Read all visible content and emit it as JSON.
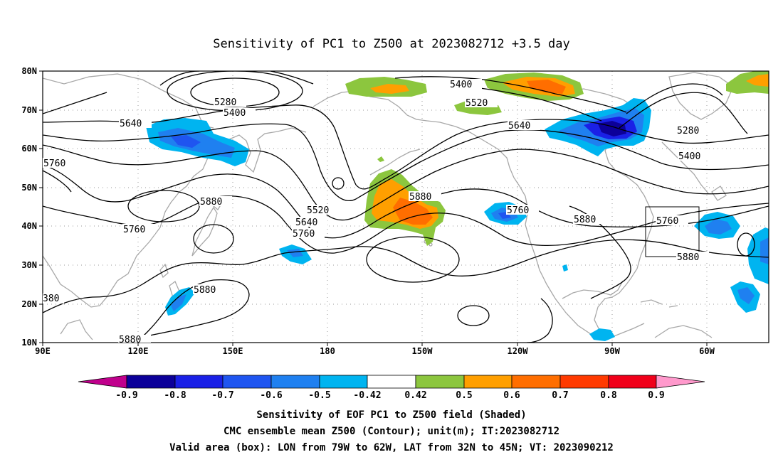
{
  "title": "Sensitivity of PC1 to Z500 at 2023082712 +3.5 day",
  "axes": {
    "lat_labels": [
      "80N",
      "70N",
      "60N",
      "50N",
      "40N",
      "30N",
      "20N",
      "10N"
    ],
    "lon_labels": [
      "90E",
      "120E",
      "150E",
      "180",
      "150W",
      "120W",
      "90W",
      "60W"
    ]
  },
  "contour_labels": {
    "c1": "5280",
    "c2": "5400",
    "c3": "5640",
    "c4": "5760",
    "c5": "5520",
    "c6": "5400",
    "c7": "5640",
    "c8": "5280",
    "c9": "5400",
    "c10": "5880",
    "c11": "5520",
    "c12": "5640",
    "c13": "5760",
    "c14": "5760",
    "c15": "5880",
    "c16": "5760",
    "c17": "5880",
    "c18": "5880",
    "c19": "5760",
    "c20": "5880",
    "c21": "380",
    "c22": "5880"
  },
  "colorbar": {
    "labels": [
      "-0.9",
      "-0.8",
      "-0.7",
      "-0.6",
      "-0.5",
      "-0.42",
      "0.42",
      "0.5",
      "0.6",
      "0.7",
      "0.8",
      "0.9"
    ],
    "colors": [
      "#0c0099",
      "#1a20e6",
      "#1f55f0",
      "#1f80f0",
      "#00b4f0",
      "#ffffff",
      "#8cc63e",
      "#ff9f00",
      "#ff6e00",
      "#ff3a00",
      "#f0001a"
    ],
    "low_end_color": "#c0008c",
    "high_end_color": "#ff99cc"
  },
  "captions": {
    "line1": "Sensitivity of EOF PC1 to Z500 field (Shaded)",
    "line2": "CMC ensemble mean Z500 (Contour); unit(m); IT:2023082712",
    "line3": "Valid area (box): LON from 79W to 62W, LAT from 32N to 45N; VT: 2023090212"
  }
}
